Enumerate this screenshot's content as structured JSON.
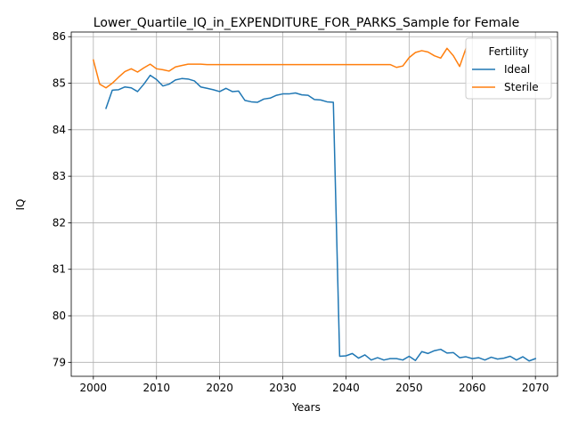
{
  "chart_data": {
    "type": "line",
    "title": "Lower_Quartile_IQ_in_EXPENDITURE_FOR_PARKS_Sample for Female",
    "xlabel": "Years",
    "ylabel": "IQ",
    "xlim": [
      1996.5,
      2073.5
    ],
    "ylim": [
      78.7,
      86.1
    ],
    "xticks": [
      2000,
      2010,
      2020,
      2030,
      2040,
      2050,
      2060,
      2070
    ],
    "yticks": [
      79,
      80,
      81,
      82,
      83,
      84,
      85,
      86
    ],
    "grid": true,
    "legend": {
      "title": "Fertility",
      "placement": "top-right"
    },
    "series": [
      {
        "name": "Ideal",
        "color": "#1f77b4",
        "x": [
          2002,
          2003,
          2004,
          2005,
          2006,
          2007,
          2008,
          2009,
          2010,
          2011,
          2012,
          2013,
          2014,
          2015,
          2016,
          2017,
          2018,
          2019,
          2020,
          2021,
          2022,
          2023,
          2024,
          2025,
          2026,
          2027,
          2028,
          2029,
          2030,
          2031,
          2032,
          2033,
          2034,
          2035,
          2036,
          2037,
          2038,
          2039,
          2040,
          2041,
          2042,
          2043,
          2044,
          2045,
          2046,
          2047,
          2048,
          2049,
          2050,
          2051,
          2052,
          2053,
          2054,
          2055,
          2056,
          2057,
          2058,
          2059,
          2060,
          2061,
          2062,
          2063,
          2064,
          2065,
          2066,
          2067,
          2068,
          2069,
          2070
        ],
        "y": [
          84.46,
          84.85,
          84.86,
          84.92,
          84.9,
          84.82,
          84.98,
          85.17,
          85.08,
          84.94,
          84.98,
          85.07,
          85.1,
          85.09,
          85.05,
          84.92,
          84.89,
          84.86,
          84.82,
          84.89,
          84.82,
          84.83,
          84.63,
          84.6,
          84.59,
          84.66,
          84.68,
          84.74,
          84.77,
          84.77,
          84.79,
          84.75,
          84.74,
          84.65,
          84.64,
          84.6,
          84.59,
          79.13,
          79.14,
          79.19,
          79.09,
          79.16,
          79.05,
          79.1,
          79.05,
          79.08,
          79.08,
          79.05,
          79.13,
          79.04,
          79.23,
          79.19,
          79.25,
          79.28,
          79.2,
          79.21,
          79.1,
          79.12,
          79.08,
          79.1,
          79.05,
          79.11,
          79.07,
          79.09,
          79.13,
          79.05,
          79.12,
          79.03,
          79.08
        ]
      },
      {
        "name": "Sterile",
        "color": "#ff7f0e",
        "x": [
          2000,
          2001,
          2002,
          2003,
          2004,
          2005,
          2006,
          2007,
          2008,
          2009,
          2010,
          2011,
          2012,
          2013,
          2014,
          2015,
          2016,
          2017,
          2018,
          2019,
          2020,
          2021,
          2022,
          2023,
          2024,
          2025,
          2026,
          2027,
          2028,
          2029,
          2030,
          2031,
          2032,
          2033,
          2034,
          2035,
          2036,
          2037,
          2038,
          2039,
          2040,
          2041,
          2042,
          2043,
          2044,
          2045,
          2046,
          2047,
          2048,
          2049,
          2050,
          2051,
          2052,
          2053,
          2054,
          2055,
          2056,
          2057,
          2058,
          2059
        ],
        "y": [
          85.5,
          84.98,
          84.9,
          85.0,
          85.13,
          85.25,
          85.31,
          85.24,
          85.33,
          85.41,
          85.31,
          85.29,
          85.26,
          85.35,
          85.38,
          85.41,
          85.41,
          85.41,
          85.4,
          85.4,
          85.4,
          85.4,
          85.4,
          85.4,
          85.4,
          85.4,
          85.4,
          85.4,
          85.4,
          85.4,
          85.4,
          85.4,
          85.4,
          85.4,
          85.4,
          85.4,
          85.4,
          85.4,
          85.4,
          85.4,
          85.4,
          85.4,
          85.4,
          85.4,
          85.4,
          85.4,
          85.4,
          85.4,
          85.34,
          85.37,
          85.55,
          85.66,
          85.7,
          85.67,
          85.59,
          85.54,
          85.75,
          85.59,
          85.36,
          85.75
        ]
      }
    ]
  }
}
